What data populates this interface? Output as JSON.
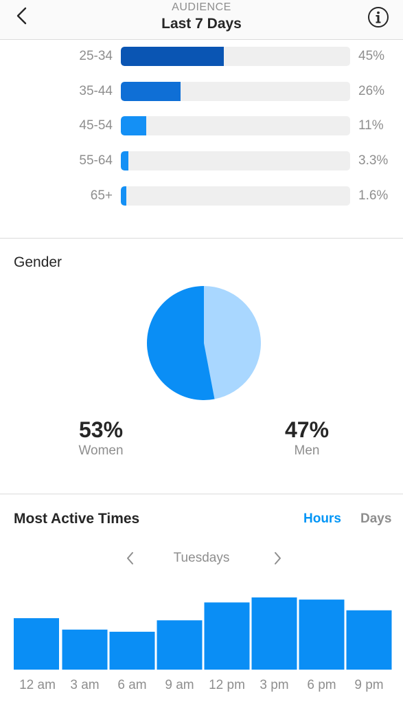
{
  "header": {
    "subtitle": "AUDIENCE",
    "title": "Last 7 Days",
    "back_icon": "chevron-left-icon",
    "info_icon": "info-icon"
  },
  "age_ranges": [
    {
      "label": "25-34",
      "percent_text": "45%",
      "value": 45,
      "color": "#0a55b3"
    },
    {
      "label": "35-44",
      "percent_text": "26%",
      "value": 26,
      "color": "#0f6fd6"
    },
    {
      "label": "45-54",
      "percent_text": "11%",
      "value": 11,
      "color": "#1490f5"
    },
    {
      "label": "55-64",
      "percent_text": "3.3%",
      "value": 3.3,
      "color": "#1490f5"
    },
    {
      "label": "65+",
      "percent_text": "1.6%",
      "value": 1.6,
      "color": "#1490f5"
    }
  ],
  "gender": {
    "title": "Gender",
    "women": {
      "percent_text": "53%",
      "label": "Women",
      "value": 53,
      "color": "#0a8ef5"
    },
    "men": {
      "percent_text": "47%",
      "label": "Men",
      "value": 47,
      "color": "#a9d7ff"
    }
  },
  "active_times": {
    "title": "Most Active Times",
    "tabs": [
      {
        "label": "Hours",
        "active": true
      },
      {
        "label": "Days",
        "active": false
      }
    ],
    "day_label": "Tuesdays",
    "prev_icon": "chevron-left-icon",
    "next_icon": "chevron-right-icon",
    "bar_color": "#0a8ef5"
  },
  "chart_data": {
    "type": "bar",
    "categories": [
      "12 am",
      "3 am",
      "6 am",
      "9 am",
      "12 pm",
      "3 pm",
      "6 pm",
      "9 pm"
    ],
    "values": [
      72,
      56,
      53,
      69,
      94,
      101,
      98,
      83
    ],
    "title": "",
    "xlabel": "",
    "ylabel": "",
    "ylim": [
      0,
      101
    ],
    "grid": false
  }
}
